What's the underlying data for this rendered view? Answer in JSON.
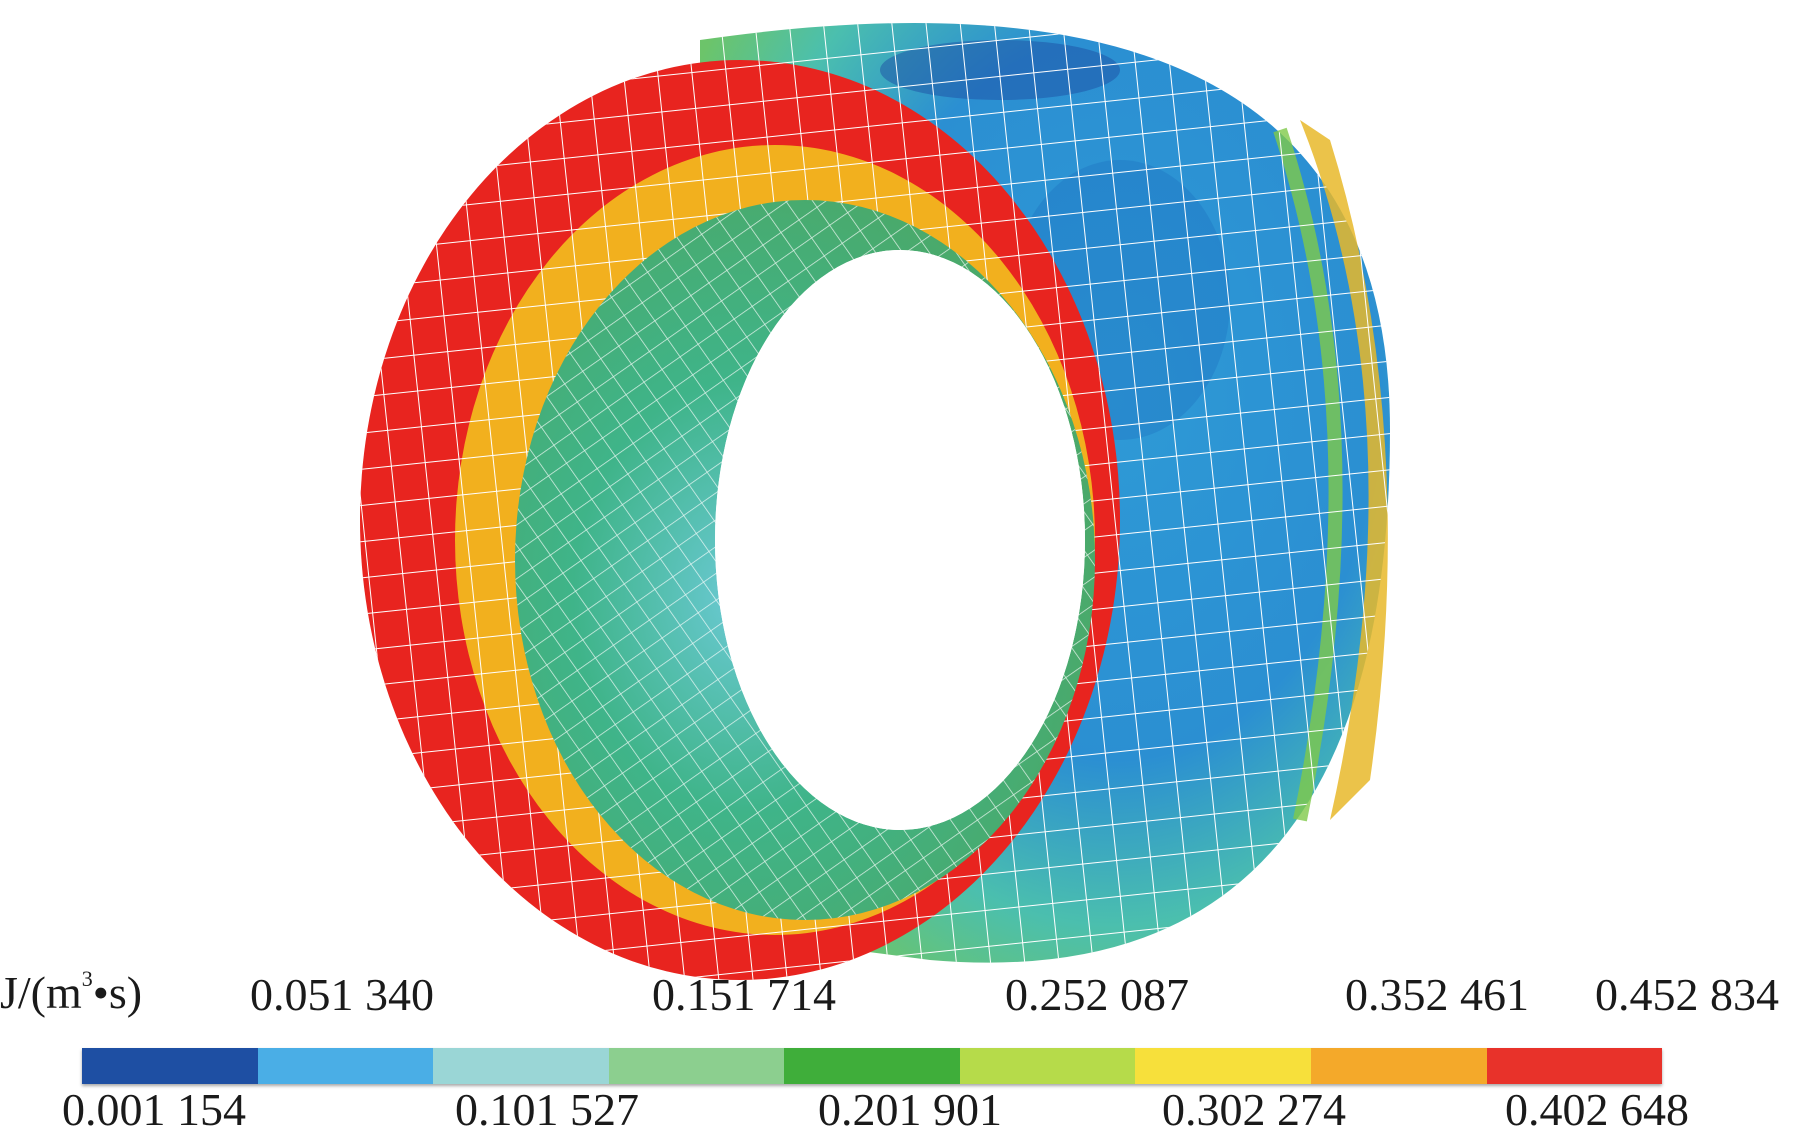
{
  "figure": {
    "unit": {
      "prefix": "J/(m",
      "sup": "3",
      "suffix": "•s)"
    },
    "legend": {
      "colors": [
        "#1e4fa3",
        "#4aaee6",
        "#9ad6d6",
        "#8ccf8f",
        "#3fae3a",
        "#b6db4a",
        "#f7e03b",
        "#f4a92a",
        "#e8322a"
      ],
      "top_labels": [
        "0.051 340",
        "0.151 714",
        "0.252 087",
        "0.352 461",
        "0.452 834"
      ],
      "bottom_labels": [
        "0.001 154",
        "0.101 527",
        "0.201 901",
        "0.302 274",
        "0.402 648"
      ]
    },
    "contour_colors": {
      "outer_band": "#e8241f",
      "middle_band": "#f2b01e",
      "inner_surface_edge": "#4fb46e",
      "inner_surface": "#3fae7a",
      "inner_surface_center": "#5cc0c8",
      "outer_side": "#2e9ad6",
      "outer_side_dark": "#1e6fc0",
      "side_rim": "#e8b82a"
    }
  }
}
